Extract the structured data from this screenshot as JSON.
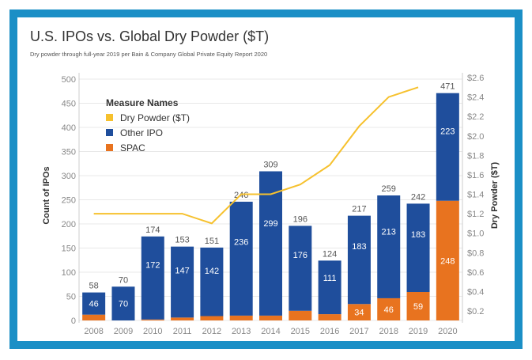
{
  "colors": {
    "frame": "#1b8fc6",
    "other_ipo": "#1f4e9c",
    "spac": "#e8731f",
    "dry_powder": "#f6c12e",
    "grid": "#e8e8e8",
    "axis_text": "#888888"
  },
  "chart_data": {
    "type": "bar",
    "title": "U.S. IPOs vs. Global Dry Powder ($T)",
    "subtitle": "Dry powder through full-year 2019 per Bain & Company Global Private Equity Report 2020",
    "ylabel": "Count of IPOs",
    "y2label": "Dry Powder ($T)",
    "ylim": [
      0,
      500
    ],
    "y2lim": [
      0,
      2.6
    ],
    "yticks": [
      "0",
      "50",
      "100",
      "150",
      "200",
      "250",
      "300",
      "350",
      "400",
      "450",
      "500"
    ],
    "y2ticks": [
      "$0.2",
      "$0.4",
      "$0.6",
      "$0.8",
      "$1.0",
      "$1.2",
      "$1.4",
      "$1.6",
      "$1.8",
      "$2.0",
      "$2.2",
      "$2.4",
      "$2.6"
    ],
    "categories": [
      "2008",
      "2009",
      "2010",
      "2011",
      "2012",
      "2013",
      "2014",
      "2015",
      "2016",
      "2017",
      "2018",
      "2019",
      "2020"
    ],
    "totals": [
      "58",
      "70",
      "174",
      "153",
      "151",
      "246",
      "309",
      "196",
      "124",
      "217",
      "259",
      "242",
      "471"
    ],
    "legend_title": "Measure Names",
    "series": [
      {
        "name": "SPAC",
        "type": "bar",
        "values": [
          12,
          0,
          2,
          6,
          9,
          10,
          10,
          20,
          13,
          34,
          46,
          59,
          248
        ],
        "labels": [
          "",
          "",
          "",
          "",
          "",
          "",
          "",
          "",
          "",
          "34",
          "46",
          "59",
          "248"
        ]
      },
      {
        "name": "Other IPO",
        "type": "bar",
        "values": [
          46,
          70,
          172,
          147,
          142,
          236,
          299,
          176,
          111,
          183,
          213,
          183,
          223
        ],
        "labels": [
          "46",
          "70",
          "172",
          "147",
          "142",
          "236",
          "299",
          "176",
          "111",
          "183",
          "213",
          "183",
          "223"
        ]
      },
      {
        "name": "Dry Powder ($T)",
        "type": "line",
        "values": [
          1.2,
          1.2,
          1.2,
          1.2,
          1.1,
          1.4,
          1.4,
          1.5,
          1.7,
          2.1,
          2.4,
          2.5,
          null
        ]
      }
    ],
    "legend_order": [
      "Dry Powder ($T)",
      "Other IPO",
      "SPAC"
    ]
  }
}
